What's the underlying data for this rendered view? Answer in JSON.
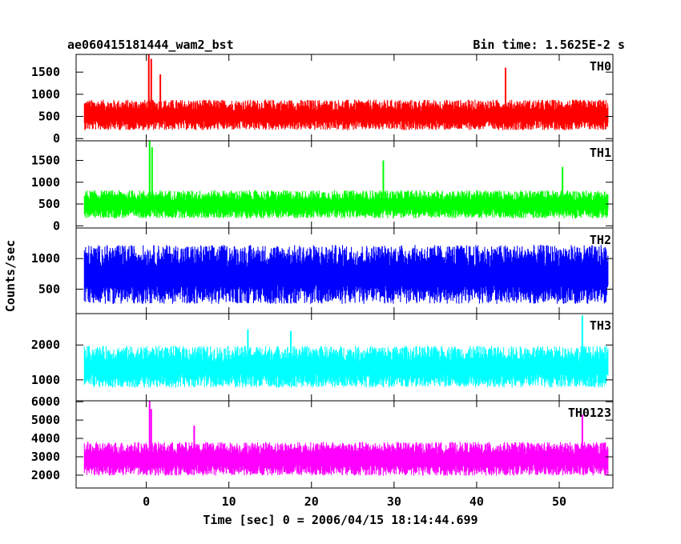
{
  "chart_data": {
    "type": "line",
    "title": "ae060415181444_wam2_bst",
    "bin_time_label": "Bin time: 1.5625E-2 s",
    "xlabel": "Time [sec] 0 = 2006/04/15 18:14:44.699",
    "ylabel": "Counts/sec",
    "xlim": [
      -8.5,
      56.5
    ],
    "x_ticks": [
      0,
      10,
      20,
      30,
      40,
      50
    ],
    "x_tick_labels": [
      "0",
      "10",
      "20",
      "30",
      "40",
      "50"
    ],
    "x_data_range": [
      -7.5,
      55.9
    ],
    "panels": [
      {
        "name": "TH0",
        "color": "#ff0000",
        "ylim": [
          -50,
          1900
        ],
        "yticks": [
          0,
          500,
          1000,
          1500
        ],
        "ytick_labels": [
          "0",
          "500",
          "1000",
          "1500"
        ],
        "mean": 520,
        "spread": 300,
        "spikes": [
          {
            "x": 0.3,
            "y": 1900
          },
          {
            "x": 0.6,
            "y": 1800
          },
          {
            "x": 1.7,
            "y": 1450
          },
          {
            "x": 43.5,
            "y": 1600
          }
        ]
      },
      {
        "name": "TH1",
        "color": "#00ff00",
        "ylim": [
          -50,
          1950
        ],
        "yticks": [
          0,
          500,
          1000,
          1500
        ],
        "ytick_labels": [
          "0",
          "500",
          "1000",
          "1500"
        ],
        "mean": 480,
        "spread": 280,
        "spikes": [
          {
            "x": 0.4,
            "y": 1950
          },
          {
            "x": 0.7,
            "y": 1800
          },
          {
            "x": 28.7,
            "y": 1500
          },
          {
            "x": 50.4,
            "y": 1350
          }
        ]
      },
      {
        "name": "TH2",
        "color": "#0000ff",
        "ylim": [
          100,
          1500
        ],
        "yticks": [
          500,
          1000
        ],
        "ytick_labels": [
          "500",
          "1000"
        ],
        "mean": 720,
        "spread": 420,
        "spikes": []
      },
      {
        "name": "TH3",
        "color": "#00ffff",
        "ylim": [
          400,
          2900
        ],
        "yticks": [
          1000,
          2000
        ],
        "ytick_labels": [
          "1000",
          "2000"
        ],
        "mean": 1350,
        "spread": 520,
        "spikes": [
          {
            "x": 52.8,
            "y": 2850
          },
          {
            "x": 17.5,
            "y": 2400
          },
          {
            "x": 12.3,
            "y": 2450
          }
        ]
      },
      {
        "name": "TH0123",
        "color": "#ff00ff",
        "ylim": [
          1300,
          6050
        ],
        "yticks": [
          2000,
          3000,
          4000,
          5000,
          6000
        ],
        "ytick_labels": [
          "2000",
          "3000",
          "4000",
          "5000",
          "6000"
        ],
        "mean": 2850,
        "spread": 800,
        "spikes": [
          {
            "x": 0.4,
            "y": 6050
          },
          {
            "x": 0.6,
            "y": 5600
          },
          {
            "x": 52.8,
            "y": 5300
          },
          {
            "x": 5.8,
            "y": 4700
          }
        ]
      }
    ]
  }
}
